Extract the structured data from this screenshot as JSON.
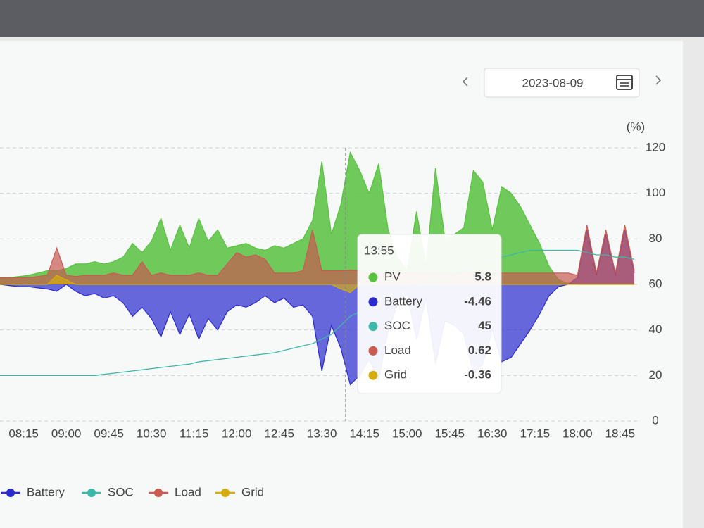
{
  "date_picker": {
    "date": "2023-08-09"
  },
  "tooltip": {
    "title": "13:55",
    "items": [
      {
        "name": "PV",
        "value": 5.8
      },
      {
        "name": "Battery",
        "value": -4.46
      },
      {
        "name": "SOC",
        "value": 45
      },
      {
        "name": "Load",
        "value": 0.62
      },
      {
        "name": "Grid",
        "value": -0.36
      }
    ]
  },
  "chart_data": {
    "type": "area",
    "y2_label": "(%)",
    "x": [
      "07:50",
      "08:00",
      "08:10",
      "08:20",
      "08:30",
      "08:40",
      "08:50",
      "09:00",
      "09:10",
      "09:20",
      "09:30",
      "09:40",
      "09:50",
      "10:00",
      "10:10",
      "10:20",
      "10:30",
      "10:40",
      "10:50",
      "11:00",
      "11:10",
      "11:20",
      "11:30",
      "11:40",
      "11:50",
      "12:00",
      "12:10",
      "12:20",
      "12:30",
      "12:40",
      "12:50",
      "13:00",
      "13:10",
      "13:20",
      "13:30",
      "13:40",
      "13:50",
      "14:00",
      "14:10",
      "14:20",
      "14:30",
      "14:40",
      "14:50",
      "15:00",
      "15:10",
      "15:20",
      "15:30",
      "15:40",
      "15:50",
      "16:00",
      "16:10",
      "16:20",
      "16:30",
      "16:40",
      "16:50",
      "17:00",
      "17:10",
      "17:20",
      "17:30",
      "17:40",
      "17:50",
      "18:00",
      "18:10",
      "18:20",
      "18:30",
      "18:40",
      "18:50",
      "19:00"
    ],
    "xlim": [
      "07:50",
      "19:03"
    ],
    "xticks": [
      "08:15",
      "09:00",
      "09:45",
      "10:30",
      "11:15",
      "12:00",
      "12:45",
      "13:30",
      "14:15",
      "15:00",
      "15:45",
      "16:30",
      "17:15",
      "18:00",
      "18:45"
    ],
    "ylim": [
      -6,
      6
    ],
    "y2lim": [
      0,
      120
    ],
    "y2ticks": [
      0,
      20,
      40,
      60,
      80,
      100,
      120
    ],
    "grid": true,
    "series": [
      {
        "name": "PV",
        "color": "#58c23f",
        "values": [
          0.3,
          0.3,
          0.35,
          0.4,
          0.5,
          0.6,
          0.6,
          0.7,
          0.9,
          0.9,
          1.0,
          0.9,
          1.0,
          1.2,
          1.8,
          1.4,
          1.9,
          2.9,
          1.5,
          2.6,
          1.6,
          2.9,
          1.9,
          2.4,
          1.6,
          1.7,
          1.8,
          1.6,
          1.5,
          1.7,
          1.6,
          1.8,
          2.0,
          2.8,
          5.4,
          2.2,
          3.5,
          5.8,
          5.0,
          4.0,
          5.3,
          2.4,
          1.2,
          0.6,
          3.2,
          0.8,
          5.1,
          2.0,
          2.2,
          2.5,
          5.0,
          4.5,
          2.4,
          4.3,
          4.0,
          3.4,
          2.6,
          1.8,
          0.8,
          0.2,
          0.05,
          0,
          0,
          0,
          0,
          0,
          0,
          0
        ]
      },
      {
        "name": "Battery",
        "color": "#2a2ad0",
        "values": [
          0,
          -0.05,
          -0.1,
          -0.1,
          -0.15,
          -0.2,
          -0.3,
          0,
          -0.3,
          -0.5,
          -0.4,
          -0.6,
          -0.5,
          -0.8,
          -1.4,
          -1.0,
          -1.5,
          -2.3,
          -1.2,
          -2.2,
          -1.3,
          -2.4,
          -1.5,
          -2.0,
          -1.2,
          -0.9,
          -1.0,
          -0.8,
          -0.5,
          -0.8,
          -0.6,
          -1.0,
          -0.9,
          -1.4,
          -3.8,
          -1.8,
          -2.8,
          -4.4,
          -4.0,
          -3.3,
          -4.2,
          -2.0,
          -0.9,
          -0.4,
          -2.4,
          -0.6,
          -3.5,
          -1.6,
          -1.8,
          -2.2,
          -3.9,
          -3.5,
          -2.0,
          -3.4,
          -3.2,
          -2.6,
          -2.0,
          -1.3,
          -0.5,
          -0.1,
          0,
          0.3,
          2.4,
          0.4,
          2.2,
          0.4,
          2.4,
          0.5
        ]
      },
      {
        "name": "SOC",
        "color": "#3cb8a8",
        "axis": "y2",
        "values": [
          20,
          20,
          20,
          20,
          20,
          20,
          20,
          20,
          20,
          20,
          20,
          20.5,
          21,
          21.5,
          22,
          22.5,
          23,
          23.5,
          24,
          24.5,
          25,
          26,
          26.5,
          27,
          27.5,
          28,
          28.5,
          29,
          29.5,
          30,
          31,
          32,
          33,
          34,
          36,
          38,
          42,
          46,
          48,
          50,
          53,
          55,
          56,
          57,
          59,
          60,
          63,
          64,
          65,
          66,
          68,
          70,
          71,
          72,
          73,
          74,
          75,
          75,
          75,
          75,
          75,
          75,
          74,
          73,
          73,
          72,
          72,
          71
        ]
      },
      {
        "name": "Load",
        "color": "#c85a50",
        "values": [
          0.3,
          0.3,
          0.3,
          0.3,
          0.35,
          0.4,
          1.6,
          0.4,
          0.35,
          0.4,
          0.4,
          0.4,
          0.5,
          0.4,
          0.4,
          1.0,
          0.4,
          0.5,
          0.4,
          0.4,
          0.4,
          0.5,
          0.4,
          0.4,
          0.9,
          1.4,
          1.2,
          1.3,
          1.1,
          0.5,
          0.5,
          0.5,
          0.6,
          2.4,
          0.6,
          0.6,
          0.6,
          0.62,
          0.6,
          0.5,
          0.5,
          0.5,
          0.5,
          0.5,
          0.5,
          0.5,
          0.5,
          0.5,
          0.5,
          0.5,
          0.5,
          0.5,
          0.5,
          0.5,
          0.5,
          0.5,
          0.5,
          0.5,
          0.5,
          0.5,
          0.5,
          0.4,
          2.6,
          0.5,
          2.4,
          0.5,
          2.6,
          0.6
        ]
      },
      {
        "name": "Grid",
        "color": "#d4ac0d",
        "values": [
          0,
          0,
          0,
          0,
          0,
          0,
          0.4,
          0.2,
          0,
          0,
          0,
          0,
          0,
          0,
          0,
          0,
          0,
          0,
          0,
          0,
          0,
          0,
          0,
          0,
          0,
          0,
          0,
          0,
          0,
          0,
          0,
          0,
          0,
          0,
          0,
          0,
          -0.2,
          -0.36,
          0,
          0,
          0,
          0,
          0,
          0,
          0,
          0,
          0,
          0,
          0,
          0,
          0,
          0,
          0,
          0,
          0,
          0,
          0,
          0,
          0,
          0,
          0,
          0,
          0,
          0,
          0,
          0,
          0,
          0
        ]
      }
    ]
  }
}
